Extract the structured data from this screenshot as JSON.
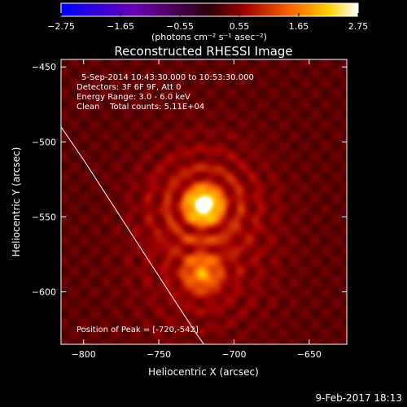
{
  "colors": {
    "background": "#000000",
    "text": "#ffffff",
    "limb": "#ffffff"
  },
  "chart_data": {
    "type": "heatmap",
    "title": "Reconstructed RHESSI Image",
    "xlabel": "Heliocentric X (arcsec)",
    "ylabel": "Heliocentric Y (arcsec)",
    "xlim": [
      -815,
      -625
    ],
    "ylim": [
      -635,
      -445
    ],
    "xticks": [
      -800,
      -750,
      -700,
      -650
    ],
    "yticks": [
      -600,
      -550,
      -500,
      -450
    ],
    "colorbar": {
      "range": [
        -2.75,
        2.75
      ],
      "ticks": [
        -2.75,
        -1.65,
        -0.55,
        0.55,
        1.65,
        2.75
      ],
      "ticklabels": [
        "-2.75",
        "-1.65",
        "-0.55",
        "0.55",
        "1.65",
        "2.75"
      ],
      "label": "(photons cm⁻² s⁻¹ asec⁻²)",
      "colormap": "blue-purple-red-yellow-white"
    },
    "info_lines": [
      "5-Sep-2014 10:43:30.000 to 10:53:30.000",
      "Detectors: 3F 6F 9F, Att 0",
      "Energy Range: 3.0 - 6.0 keV",
      "Clean    Total counts: 5.11E+04"
    ],
    "peak_label": "Position of Peak = [-720,-542]",
    "sources": [
      {
        "x": -720,
        "y": -542,
        "intensity": 2.75,
        "sigma": 6.5
      },
      {
        "x": -721,
        "y": -588,
        "intensity": 1.25,
        "sigma": 8
      }
    ],
    "background_level": 0.45,
    "limb": [
      [
        -815,
        -490
      ],
      [
        -800,
        -512
      ],
      [
        -780,
        -543
      ],
      [
        -760,
        -574
      ],
      [
        -740,
        -605
      ],
      [
        -725,
        -628
      ],
      [
        -720,
        -635
      ]
    ]
  },
  "footer": {
    "date": "9-Feb-2017 18:13"
  }
}
